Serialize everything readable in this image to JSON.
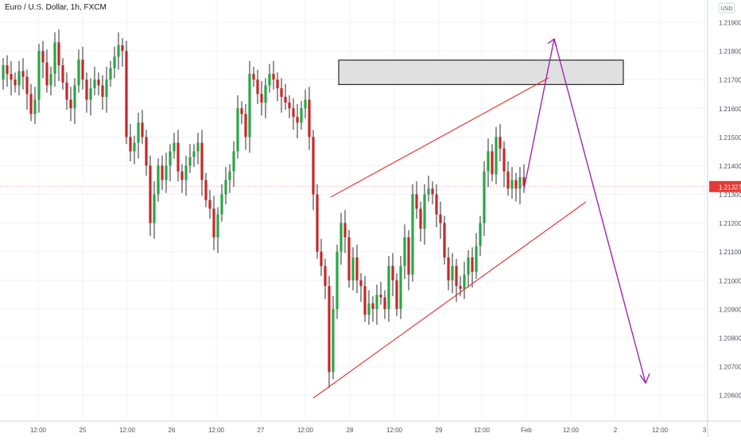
{
  "title": "Euro / U.S. Dollar, 1h, FXCM",
  "currency_badge": "USD",
  "last_price_label": "1.21327",
  "colors": {
    "up": "#28a745",
    "down": "#c62828",
    "wedge": "#e53935",
    "projection": "#9c27b0",
    "zone_fill": "#e0e0e0",
    "zone_border": "#000000",
    "price_tag": "#e53935",
    "grid": "#f0f3fa",
    "axis_text": "#50535e"
  },
  "chart_data": {
    "type": "candlestick",
    "title": "Euro / U.S. Dollar, 1h, FXCM",
    "y_unit": "USD",
    "ylim": [
      1.2052,
      1.2195
    ],
    "y_ticks": [
      "1.20600",
      "1.20700",
      "1.20800",
      "1.20900",
      "1.21000",
      "1.21100",
      "1.21200",
      "1.21300",
      "1.21400",
      "1.21500",
      "1.21600",
      "1.21700",
      "1.21800",
      "1.21900"
    ],
    "x_ticks": [
      "12:00",
      "25",
      "12:00",
      "26",
      "12:00",
      "27",
      "12:00",
      "28",
      "12:00",
      "29",
      "12:00",
      "Feb",
      "12:00",
      "2",
      "12:00",
      "3"
    ],
    "last_price": 1.21327,
    "candles_close": [
      1.2175,
      1.2172,
      1.217,
      1.2168,
      1.2173,
      1.2171,
      1.2165,
      1.2158,
      1.2163,
      1.218,
      1.2176,
      1.2168,
      1.2172,
      1.2183,
      1.2175,
      1.2169,
      1.2163,
      1.216,
      1.2168,
      1.2177,
      1.217,
      1.2163,
      1.2167,
      1.217,
      1.2168,
      1.2164,
      1.217,
      1.2174,
      1.2178,
      1.2182,
      1.218,
      1.215,
      1.2145,
      1.2148,
      1.2155,
      1.215,
      1.214,
      1.212,
      1.213,
      1.214,
      1.2135,
      1.214,
      1.2145,
      1.2148,
      1.2138,
      1.2135,
      1.214,
      1.2143,
      1.2145,
      1.2148,
      1.2135,
      1.2128,
      1.2125,
      1.2115,
      1.2123,
      1.213,
      1.2135,
      1.2138,
      1.2145,
      1.216,
      1.2158,
      1.215,
      1.2172,
      1.217,
      1.2165,
      1.2162,
      1.2168,
      1.2172,
      1.217,
      1.2167,
      1.2164,
      1.2162,
      1.216,
      1.2157,
      1.2155,
      1.216,
      1.2163,
      1.215,
      1.213,
      1.211,
      1.2105,
      1.2098,
      1.2068,
      1.209,
      1.211,
      1.212,
      1.2115,
      1.21,
      1.2108,
      1.21,
      1.2098,
      1.2088,
      1.2092,
      1.209,
      1.2095,
      1.2094,
      1.209,
      1.2105,
      1.21,
      1.209,
      1.2105,
      1.2115,
      1.2102,
      1.213,
      1.2125,
      1.2118,
      1.213,
      1.2132,
      1.213,
      1.2123,
      1.212,
      1.2108,
      1.21,
      1.2105,
      1.2098,
      1.2097,
      1.2102,
      1.2108,
      1.2103,
      1.2112,
      1.212,
      1.2138,
      1.2145,
      1.2137,
      1.215,
      1.2146,
      1.2138,
      1.2132,
      1.2135,
      1.2132,
      1.2136,
      1.2133
    ],
    "annotations": [
      {
        "type": "zone",
        "from_bar": 86,
        "to_bar": 170,
        "y_low": 1.21683,
        "y_high": 1.21768
      },
      {
        "type": "wedge-upper",
        "from": [
          88,
          1.2128
        ],
        "to": [
          162,
          1.217
        ]
      },
      {
        "type": "wedge-lower",
        "from": [
          85,
          1.2059
        ],
        "to": [
          167,
          1.2127
        ]
      },
      {
        "type": "projection",
        "points": [
          [
            144,
            1.2132
          ],
          [
            153,
            1.2185
          ],
          [
            175,
            1.2065
          ]
        ]
      }
    ]
  }
}
